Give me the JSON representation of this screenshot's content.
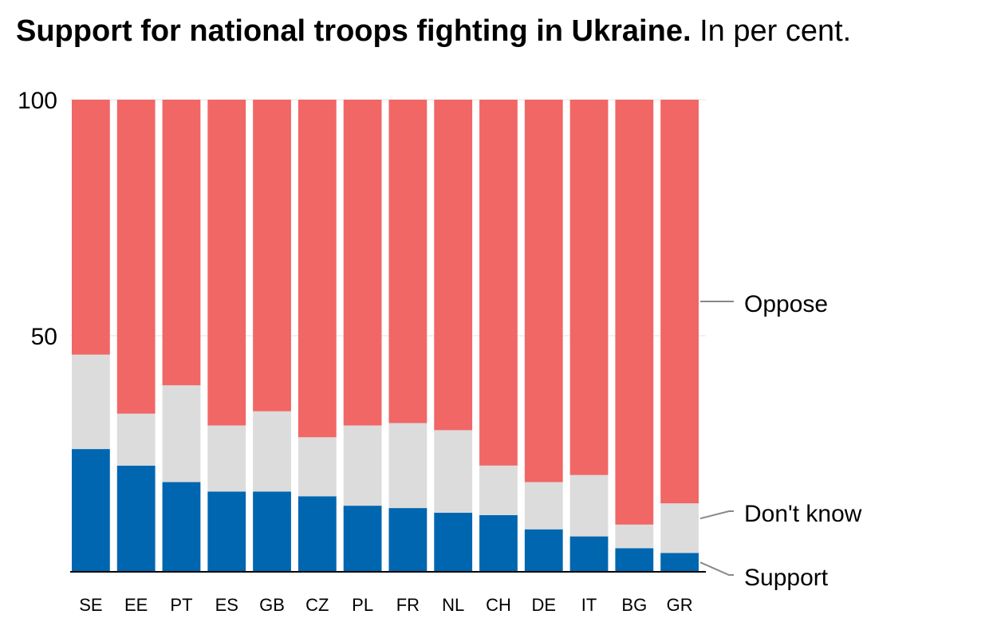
{
  "title": {
    "main": "Support for national troops fighting in Ukraine.",
    "sub": "In per cent."
  },
  "colors": {
    "support": "#0066b0",
    "dont_know": "#dcdcdc",
    "oppose": "#f06765",
    "leader": "#888888",
    "grid": "#e6e6e6",
    "axis": "#000000"
  },
  "chart_data": {
    "type": "bar",
    "stacked": true,
    "title": "Support for national troops fighting in Ukraine.",
    "subtitle": "In per cent.",
    "xlabel": "",
    "ylabel": "",
    "ylim": [
      0,
      100
    ],
    "yticks": [
      50,
      100
    ],
    "categories": [
      "SE",
      "EE",
      "PT",
      "ES",
      "GB",
      "CZ",
      "PL",
      "FR",
      "NL",
      "CH",
      "DE",
      "IT",
      "BG",
      "GR"
    ],
    "series": [
      {
        "name": "Support",
        "key": "support",
        "values": [
          26,
          22.5,
          19,
          17,
          17,
          16,
          14,
          13.5,
          12.5,
          12,
          9,
          7.5,
          5,
          4
        ]
      },
      {
        "name": "Don't know",
        "key": "dont_know",
        "values": [
          20,
          11,
          20.5,
          14,
          17,
          12.5,
          17,
          18,
          17.5,
          10.5,
          10,
          13,
          5,
          10.5
        ]
      },
      {
        "name": "Oppose",
        "key": "oppose",
        "values": [
          54,
          66.5,
          60.5,
          69,
          66,
          71.5,
          69,
          68.5,
          70,
          77.5,
          81,
          79.5,
          90,
          85.5
        ]
      }
    ],
    "legend": [
      "Oppose",
      "Don't know",
      "Support"
    ],
    "legend_position": "right, direct labels"
  }
}
